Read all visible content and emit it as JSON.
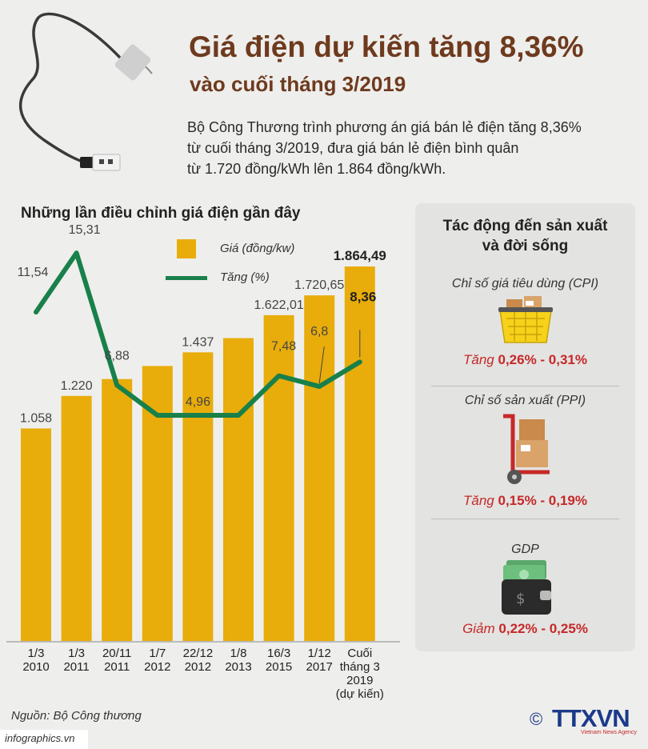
{
  "header": {
    "title_line1": "Giá điện dự kiến tăng 8,36%",
    "title_line2": "vào cuối tháng 3/2019",
    "intro_line1": "Bộ Công Thương trình phương án giá bán lẻ điện tăng 8,36%",
    "intro_line2": "từ cuối tháng 3/2019, đưa giá bán lẻ điện bình quân",
    "intro_line3": "từ 1.720 đồng/kWh lên 1.864 đồng/kWh."
  },
  "chart_data": {
    "type": "bar",
    "title": "Những lần điều chỉnh giá điện gần đây",
    "categories": [
      [
        "1/3",
        "2010"
      ],
      [
        "1/3",
        "2011"
      ],
      [
        "20/11",
        "2011"
      ],
      [
        "1/7",
        "2012"
      ],
      [
        "22/12",
        "2012"
      ],
      [
        "1/8",
        "2013"
      ],
      [
        "16/3",
        "2015"
      ],
      [
        "1/12",
        "2017"
      ],
      [
        "Cuối",
        "tháng 3",
        "2019",
        "(dự kiến)"
      ]
    ],
    "series": [
      {
        "name": "Giá (đồng/kw)",
        "type": "bar",
        "values": [
          1058,
          1220,
          1304,
          1369,
          1437,
          1508,
          1622.01,
          1720.65,
          1864.49
        ],
        "labels": [
          "1.058",
          "1.220",
          "",
          "",
          "1.437",
          "",
          "1.622,01",
          "1.720,65",
          "1.864,49"
        ],
        "color": "#e8ac0b"
      },
      {
        "name": "Tăng (%)",
        "type": "line",
        "values": [
          11.54,
          15.31,
          6.88,
          4.96,
          4.96,
          4.96,
          7.48,
          6.8,
          8.36
        ],
        "labels": [
          "11,54",
          "15,31",
          "6,88",
          "",
          "4,96",
          "",
          "7,48",
          "6,8",
          "8,36"
        ],
        "color": "#18804a"
      }
    ]
  },
  "panel": {
    "title_line1": "Tác động đến sản xuất",
    "title_line2": "và đời sống",
    "items": [
      {
        "label": "Chỉ số giá tiêu dùng (CPI)",
        "effect_word": "Tăng",
        "effect_value": "0,26% - 0,31%",
        "icon": "shopping-basket-icon"
      },
      {
        "label": "Chỉ số sản xuất (PPI)",
        "effect_word": "Tăng",
        "effect_value": "0,15% - 0,19%",
        "icon": "hand-truck-icon"
      },
      {
        "label": "GDP",
        "effect_word": "Giảm",
        "effect_value": "0,22% - 0,25%",
        "icon": "wallet-icon"
      }
    ]
  },
  "footer": {
    "source": "Nguồn: Bộ Công thương",
    "site": "infographics.vn",
    "copyright": "©",
    "logo": "TTXVN",
    "logo_sub": "Vietnam News Agency"
  },
  "colors": {
    "bar": "#e8ac0b",
    "line": "#18804a",
    "title": "#6e3a1e",
    "effect": "#c62828"
  }
}
